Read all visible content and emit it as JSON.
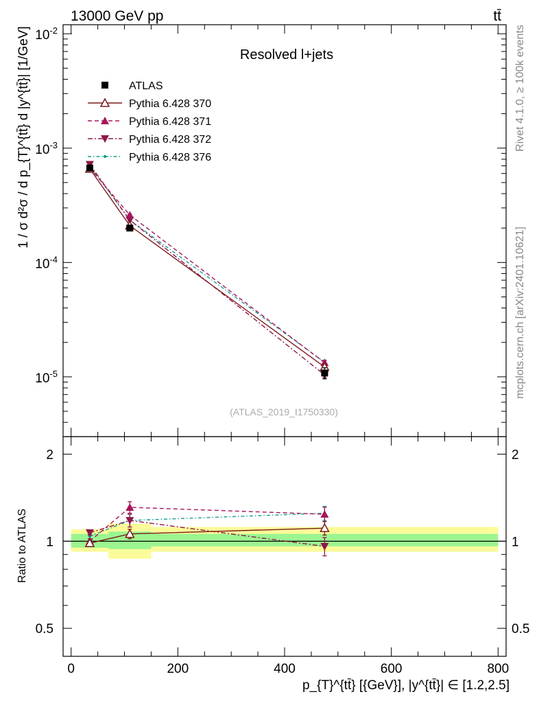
{
  "header": {
    "energy_label": "13000 GeV pp",
    "process_label": "tt̄"
  },
  "side_labels": {
    "rivet": "Rivet 4.1.0, ≥ 100k events",
    "source": "mcplots.cern.ch [arXiv:2401.10621]"
  },
  "chart_data": [
    {
      "panel": "main",
      "type": "line",
      "title": "Resolved l+jets",
      "watermark": "(ATLAS_2019_I1750330)",
      "xlabel": "p_{T}^{tt̄} [{GeV}], |y^{tt̄}| ∈ [1.2,2.5]",
      "ylabel": "1 / σ d²σ / d p_{T}^{tt̄} d |y^{tt̄}| [1/GeV]",
      "xlim": [
        -15,
        815
      ],
      "ylim": [
        3e-06,
        0.012
      ],
      "yscale": "log",
      "y_tick_labels": [
        "10^-2",
        "10^-3",
        "10^-4",
        "10^-5"
      ],
      "y_tick_exponents": [
        -2,
        -3,
        -4,
        -5
      ],
      "bins": [
        [
          0,
          70
        ],
        [
          70,
          150
        ],
        [
          150,
          800
        ]
      ],
      "x": [
        35,
        110,
        475
      ],
      "series": [
        {
          "name": "ATLAS",
          "style": "data",
          "marker": "square",
          "color": "#000000",
          "values": [
            0.00067,
            0.0002,
            1.08e-05
          ],
          "errors": [
            3e-05,
            8e-06,
            1.2e-06
          ]
        },
        {
          "name": "Pythia 6.428 370",
          "style": "solid",
          "marker": "triangle-open",
          "color": "#7b1a1a",
          "values": [
            0.00066,
            0.00021,
            1.22e-05
          ],
          "errors": [
            1e-05,
            4e-06,
            5e-07
          ]
        },
        {
          "name": "Pythia 6.428 371",
          "style": "dashed",
          "marker": "triangle-up",
          "color": "#a8155b",
          "values": [
            0.00067,
            0.00026,
            1.33e-05
          ],
          "errors": [
            1e-05,
            5e-06,
            6e-07
          ]
        },
        {
          "name": "Pythia 6.428 372",
          "style": "dashdot",
          "marker": "triangle-down",
          "color": "#8f1748",
          "values": [
            0.00072,
            0.000235,
            1.04e-05
          ],
          "errors": [
            1e-05,
            5e-06,
            6e-07
          ]
        },
        {
          "name": "Pythia 6.428 376",
          "style": "dashdot-teal",
          "marker": "dot",
          "color": "#189c91",
          "values": [
            0.0007,
            0.000235,
            1.34e-05
          ],
          "errors": [
            1e-05,
            5e-06,
            6e-07
          ]
        }
      ]
    },
    {
      "panel": "ratio",
      "type": "line",
      "ylabel": "Ratio to ATLAS",
      "xlim": [
        -15,
        815
      ],
      "ylim": [
        0.4,
        2.3
      ],
      "yscale": "log",
      "y_ticks": [
        0.5,
        1,
        2
      ],
      "y_tick_labels": [
        "0.5",
        "1",
        "2"
      ],
      "x_ticks": [
        0,
        200,
        400,
        600,
        800
      ],
      "x_tick_labels": [
        "0",
        "200",
        "400",
        "600",
        "800"
      ],
      "bands": {
        "bins": [
          [
            0,
            70
          ],
          [
            70,
            150
          ],
          [
            150,
            800
          ]
        ],
        "yellow": [
          [
            0.92,
            1.1
          ],
          [
            0.87,
            1.15
          ],
          [
            0.92,
            1.12
          ]
        ],
        "green": [
          [
            0.95,
            1.06
          ],
          [
            0.94,
            1.08
          ],
          [
            0.96,
            1.06
          ]
        ]
      },
      "x": [
        35,
        110,
        475
      ],
      "series": [
        {
          "name": "Pythia 6.428 370",
          "values": [
            0.985,
            1.06,
            1.11
          ],
          "errors": [
            0.02,
            0.04,
            0.06
          ]
        },
        {
          "name": "Pythia 6.428 371",
          "values": [
            1.0,
            1.31,
            1.24
          ],
          "errors": [
            0.02,
            0.06,
            0.07
          ]
        },
        {
          "name": "Pythia 6.428 372",
          "values": [
            1.07,
            1.18,
            0.96
          ],
          "errors": [
            0.02,
            0.06,
            0.07
          ]
        },
        {
          "name": "Pythia 6.428 376",
          "values": [
            1.04,
            1.18,
            1.25
          ],
          "errors": [
            0.02,
            0.06,
            0.07
          ]
        }
      ]
    }
  ]
}
